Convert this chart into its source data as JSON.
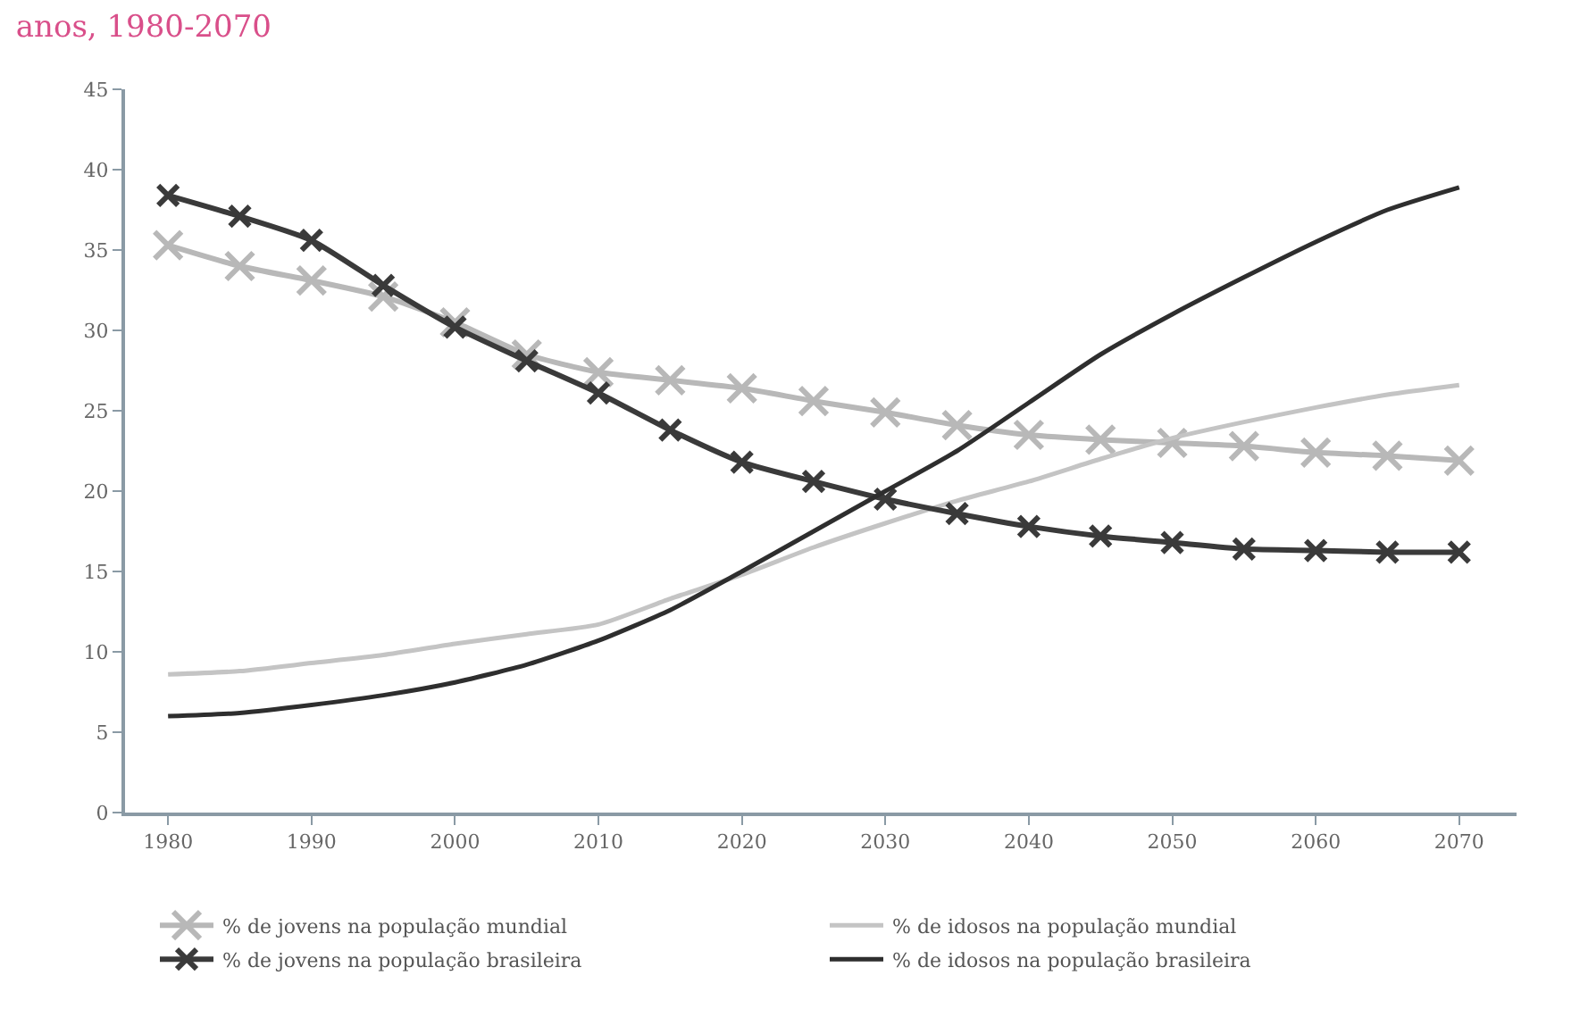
{
  "chart_data": {
    "type": "line",
    "title": "anos, 1980-2070",
    "x": [
      1980,
      1985,
      1990,
      1995,
      2000,
      2005,
      2010,
      2015,
      2020,
      2025,
      2030,
      2035,
      2040,
      2045,
      2050,
      2055,
      2060,
      2065,
      2070
    ],
    "series": [
      {
        "name": "% de jovens na população mundial",
        "color": "#b8b8b8",
        "marker": "cross",
        "values": [
          35.3,
          34.0,
          33.1,
          32.1,
          30.5,
          28.5,
          27.4,
          26.9,
          26.4,
          25.6,
          24.9,
          24.1,
          23.5,
          23.2,
          23.0,
          22.8,
          22.4,
          22.2,
          21.9
        ]
      },
      {
        "name": "% de idosos na população mundial",
        "color": "#c4c4c4",
        "marker": "none",
        "values": [
          8.6,
          8.8,
          9.3,
          9.8,
          10.5,
          11.1,
          11.7,
          13.3,
          14.8,
          16.5,
          18.0,
          19.4,
          20.6,
          22.0,
          23.3,
          24.3,
          25.2,
          26.0,
          26.6
        ]
      },
      {
        "name": "% de jovens na população brasileira",
        "color": "#3a3a3a",
        "marker": "cross",
        "values": [
          38.4,
          37.1,
          35.6,
          32.8,
          30.2,
          28.1,
          26.1,
          23.8,
          21.8,
          20.6,
          19.5,
          18.6,
          17.8,
          17.2,
          16.8,
          16.4,
          16.3,
          16.2,
          16.2
        ]
      },
      {
        "name": "% de idosos na população brasileira",
        "color": "#2e2e2e",
        "marker": "none",
        "values": [
          6.0,
          6.2,
          6.7,
          7.3,
          8.1,
          9.2,
          10.7,
          12.6,
          15.0,
          17.5,
          20.0,
          22.5,
          25.5,
          28.5,
          31.0,
          33.3,
          35.5,
          37.5,
          38.9
        ]
      }
    ],
    "xlim": [
      1977,
      2074
    ],
    "xticks": [
      1980,
      1990,
      2000,
      2010,
      2020,
      2030,
      2040,
      2050,
      2060,
      2070
    ],
    "ylim": [
      0,
      45
    ],
    "yticks": [
      0,
      5,
      10,
      15,
      20,
      25,
      30,
      35,
      40,
      45
    ],
    "legend": "bottom",
    "line_style": "solid"
  }
}
